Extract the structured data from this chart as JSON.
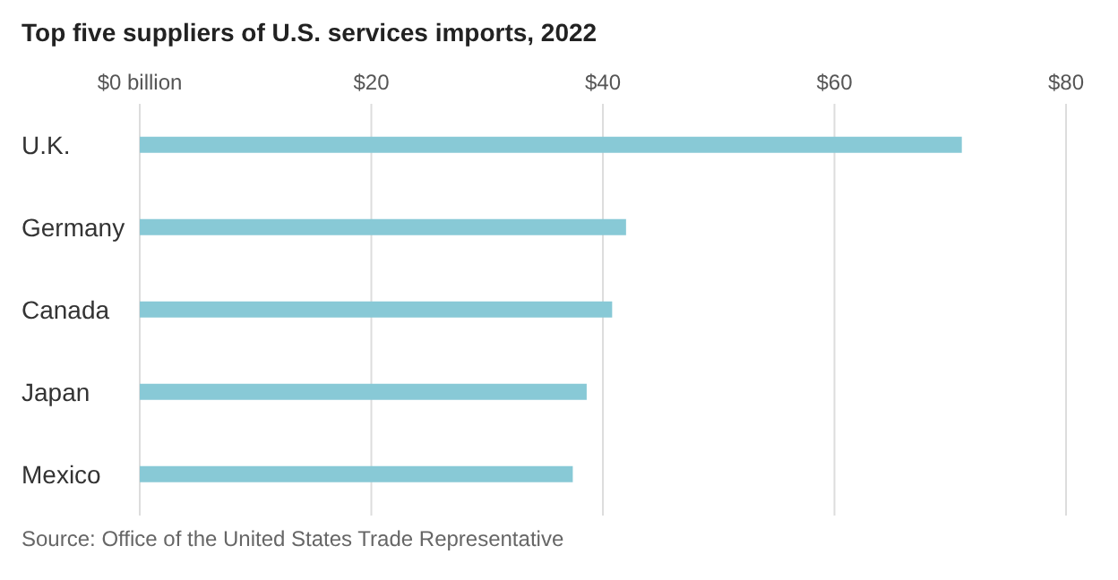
{
  "chart_data": {
    "type": "bar",
    "orientation": "horizontal",
    "title": "Top five suppliers of U.S. services imports, 2022",
    "categories": [
      "U.K.",
      "Germany",
      "Canada",
      "Japan",
      "Mexico"
    ],
    "values": [
      71,
      42,
      40.8,
      38.6,
      37.4
    ],
    "color": "#88c9d6",
    "xlim": [
      0,
      80
    ],
    "xticks": [
      {
        "value": 0,
        "label": "$0 billion"
      },
      {
        "value": 20,
        "label": "$20"
      },
      {
        "value": 40,
        "label": "$40"
      },
      {
        "value": 60,
        "label": "$60"
      },
      {
        "value": 80,
        "label": "$80"
      }
    ],
    "grid": "x",
    "annotations": [
      "Source: Office of the United States Trade Representative"
    ]
  }
}
